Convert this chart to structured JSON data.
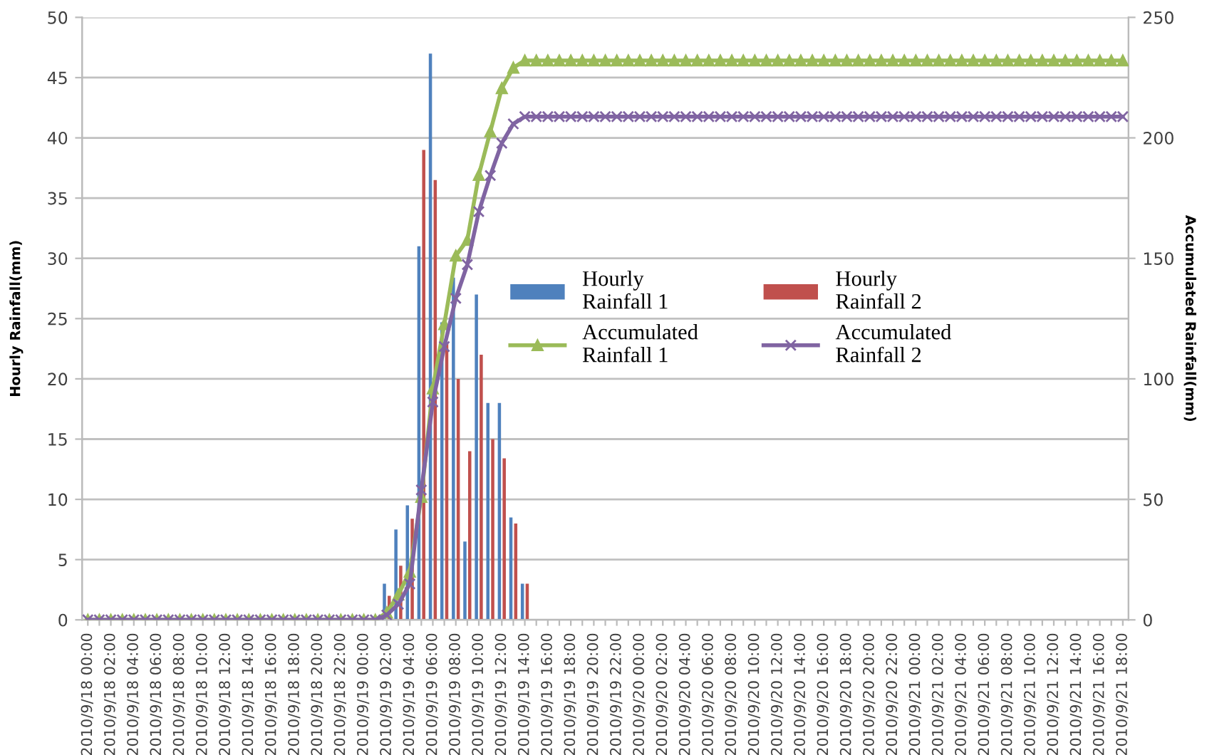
{
  "chart_data": {
    "type": "bar",
    "categories": [
      "2010/9/18 00:00",
      null,
      "2010/9/18 02:00",
      null,
      "2010/9/18 04:00",
      null,
      "2010/9/18 06:00",
      null,
      "2010/9/18 08:00",
      null,
      "2010/9/18 10:00",
      null,
      "2010/9/18 12:00",
      null,
      "2010/9/18 14:00",
      null,
      "2010/9/18 16:00",
      null,
      "2010/9/18 18:00",
      null,
      "2010/9/18 20:00",
      null,
      "2010/9/18 22:00",
      null,
      "2010/9/19 00:00",
      null,
      "2010/9/19 02:00",
      null,
      "2010/9/19 04:00",
      null,
      "2010/9/19 06:00",
      null,
      "2010/9/19 08:00",
      null,
      "2010/9/19 10:00",
      null,
      "2010/9/19 12:00",
      null,
      "2010/9/19 14:00",
      null,
      "2010/9/19 16:00",
      null,
      "2010/9/19 18:00",
      null,
      "2010/9/19 20:00",
      null,
      "2010/9/19 22:00",
      null,
      "2010/9/20 00:00",
      null,
      "2010/9/20 02:00",
      null,
      "2010/9/20 04:00",
      null,
      "2010/9/20 06:00",
      null,
      "2010/9/20 08:00",
      null,
      "2010/9/20 10:00",
      null,
      "2010/9/20 12:00",
      null,
      "2010/9/20 14:00",
      null,
      "2010/9/20 16:00",
      null,
      "2010/9/20 18:00",
      null,
      "2010/9/20 20:00",
      null,
      "2010/9/20 22:00",
      null,
      "2010/9/21 00:00",
      null,
      "2010/9/21 02:00",
      null,
      "2010/9/21 04:00",
      null,
      "2010/9/21 06:00",
      null,
      "2010/9/21 08:00",
      null,
      "2010/9/21 10:00",
      null,
      "2010/9/21 12:00",
      null,
      "2010/9/21 14:00",
      null,
      "2010/9/21 16:00",
      null,
      "2010/9/21 18:00"
    ],
    "series": [
      {
        "name": "Hourly Rainfall 1",
        "color": "#4f81bd",
        "values": [
          null,
          null,
          null,
          null,
          null,
          null,
          null,
          null,
          null,
          null,
          null,
          null,
          null,
          null,
          null,
          null,
          null,
          null,
          null,
          null,
          null,
          null,
          null,
          null,
          null,
          null,
          3,
          7.5,
          9.5,
          31,
          47,
          24.7,
          28.4,
          6.5,
          27,
          18,
          18,
          8.5,
          3,
          null,
          null,
          null,
          null,
          null,
          null,
          null,
          null,
          null,
          null,
          null,
          null,
          null,
          null,
          null,
          null,
          null,
          null,
          null,
          null,
          null,
          null,
          null,
          null,
          null,
          null,
          null,
          null,
          null,
          null,
          null,
          null,
          null,
          null,
          null,
          null,
          null,
          null,
          null,
          null,
          null,
          null,
          null,
          null,
          null,
          null,
          null,
          null,
          null,
          null,
          null,
          null
        ]
      },
      {
        "name": "Hourly Rainfall 2",
        "color": "#c0504d",
        "values": [
          null,
          null,
          null,
          null,
          null,
          null,
          null,
          null,
          null,
          null,
          null,
          null,
          null,
          null,
          null,
          null,
          null,
          null,
          null,
          null,
          null,
          null,
          null,
          null,
          null,
          null,
          2,
          4.5,
          8.4,
          39,
          36.5,
          23,
          20,
          14,
          22,
          15,
          13.4,
          8,
          3,
          null,
          null,
          null,
          null,
          null,
          null,
          null,
          null,
          null,
          null,
          null,
          null,
          null,
          null,
          null,
          null,
          null,
          null,
          null,
          null,
          null,
          null,
          null,
          null,
          null,
          null,
          null,
          null,
          null,
          null,
          null,
          null,
          null,
          null,
          null,
          null,
          null,
          null,
          null,
          null,
          null,
          null,
          null,
          null,
          null,
          null,
          null,
          null,
          null,
          null,
          null,
          null
        ]
      },
      {
        "name": "Accumulated Rainfall 1",
        "type": "line",
        "axis": "y2",
        "marker": "triangle",
        "color": "#9bbb59",
        "values": [
          0,
          0,
          0,
          0,
          0,
          0,
          0,
          0,
          0,
          0,
          0,
          0,
          0,
          0,
          0,
          0,
          0,
          0,
          0,
          0,
          0,
          0,
          0,
          0,
          0,
          0,
          3,
          10.5,
          20,
          51,
          96,
          122.7,
          151.1,
          157.6,
          184.6,
          202.6,
          220.6,
          229.1,
          232.1,
          232.1,
          232.1,
          232.1,
          232.1,
          232.1,
          232.1,
          232.1,
          232.1,
          232.1,
          232.1,
          232.1,
          232.1,
          232.1,
          232.1,
          232.1,
          232.1,
          232.1,
          232.1,
          232.1,
          232.1,
          232.1,
          232.1,
          232.1,
          232.1,
          232.1,
          232.1,
          232.1,
          232.1,
          232.1,
          232.1,
          232.1,
          232.1,
          232.1,
          232.1,
          232.1,
          232.1,
          232.1,
          232.1,
          232.1,
          232.1,
          232.1,
          232.1,
          232.1,
          232.1,
          232.1,
          232.1,
          232.1,
          232.1,
          232.1,
          232.1,
          232.1,
          232.1
        ]
      },
      {
        "name": "Accumulated Rainfall 2",
        "type": "line",
        "axis": "y2",
        "marker": "cross",
        "color": "#8064a2",
        "values": [
          0,
          0,
          0,
          0,
          0,
          0,
          0,
          0,
          0,
          0,
          0,
          0,
          0,
          0,
          0,
          0,
          0,
          0,
          0,
          0,
          0,
          0,
          0,
          0,
          0,
          0,
          2,
          6.5,
          14.9,
          53.9,
          90.4,
          113.4,
          133.4,
          147.4,
          169.4,
          184.4,
          197.8,
          205.8,
          208.8,
          208.8,
          208.8,
          208.8,
          208.8,
          208.8,
          208.8,
          208.8,
          208.8,
          208.8,
          208.8,
          208.8,
          208.8,
          208.8,
          208.8,
          208.8,
          208.8,
          208.8,
          208.8,
          208.8,
          208.8,
          208.8,
          208.8,
          208.8,
          208.8,
          208.8,
          208.8,
          208.8,
          208.8,
          208.8,
          208.8,
          208.8,
          208.8,
          208.8,
          208.8,
          208.8,
          208.8,
          208.8,
          208.8,
          208.8,
          208.8,
          208.8,
          208.8,
          208.8,
          208.8,
          208.8,
          208.8,
          208.8,
          208.8,
          208.8,
          208.8,
          208.8,
          208.8
        ]
      }
    ],
    "ylabel": "Hourly Rainfall(mm)",
    "y2label": "Accumulated Rainfall(mm)",
    "ylim": [
      0,
      50
    ],
    "yticks": [
      0,
      5,
      10,
      15,
      20,
      25,
      30,
      35,
      40,
      45,
      50
    ],
    "y2lim": [
      0,
      250
    ],
    "y2ticks": [
      0,
      50,
      100,
      150,
      200,
      250
    ],
    "grid": "y",
    "legend": "center"
  }
}
